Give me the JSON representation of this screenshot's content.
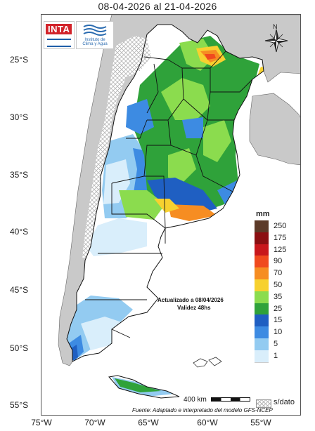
{
  "title": "08-04-2026 al 21-04-2026",
  "logos": {
    "inta": "INTA",
    "institute_line1": "Instituto de",
    "institute_line2": "Clima y Agua"
  },
  "compass_letter": "N",
  "latitude_labels": [
    "25°S",
    "30°S",
    "35°S",
    "40°S",
    "45°S",
    "50°S",
    "55°S"
  ],
  "longitude_labels": [
    "75°W",
    "70°W",
    "65°W",
    "60°W",
    "55°W"
  ],
  "legend": {
    "unit": "mm",
    "classes": [
      {
        "label": "250",
        "color": "#5c3a28"
      },
      {
        "label": "175",
        "color": "#8b0f12"
      },
      {
        "label": "125",
        "color": "#c8171c"
      },
      {
        "label": "90",
        "color": "#f04a1e"
      },
      {
        "label": "70",
        "color": "#f68d22"
      },
      {
        "label": "50",
        "color": "#f7d12f"
      },
      {
        "label": "35",
        "color": "#8bdc4e"
      },
      {
        "label": "25",
        "color": "#2fa23a"
      },
      {
        "label": "15",
        "color": "#1f5fc2"
      },
      {
        "label": "10",
        "color": "#3d8be2"
      },
      {
        "label": "5",
        "color": "#93cbf1"
      },
      {
        "label": "1",
        "color": "#d9eefb"
      }
    ],
    "below_threshold_color": "#ffffff",
    "no_data_label": "s/dato"
  },
  "annotations": {
    "updated": "Actualizado a 08/04/2026",
    "validity": "Validez 48hs"
  },
  "scale_label": "400 km",
  "source": "Fuente: Adaptado e interpretado del modelo GFS-NCEP",
  "colors": {
    "ocean": "#ffffff",
    "neighbor_land": "#c9c9c9",
    "border": "#111111"
  }
}
